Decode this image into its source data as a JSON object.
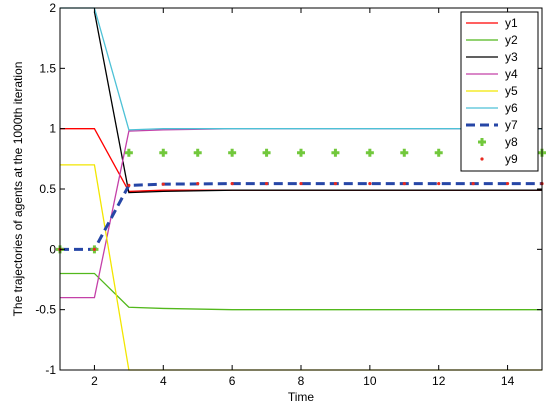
{
  "chart_data": {
    "type": "line",
    "title": "",
    "xlabel": "Time",
    "ylabel": "The trajectories of agents at the 1000th iteration",
    "xlim": [
      1,
      15
    ],
    "ylim": [
      -1,
      2
    ],
    "xticks": [
      2,
      4,
      6,
      8,
      10,
      12,
      14
    ],
    "yticks": [
      -1,
      -0.5,
      0,
      0.5,
      1,
      1.5,
      2
    ],
    "xtick_labels": [
      "2",
      "4",
      "6",
      "8",
      "10",
      "12",
      "14"
    ],
    "ytick_labels": [
      "-1",
      "-0.5",
      "0",
      "0.5",
      "1",
      "1.5",
      "2"
    ],
    "grid": false,
    "legend_position": "top-right",
    "series": [
      {
        "name": "y1",
        "color": "#ff0000",
        "style": "solid",
        "x": [
          1,
          2,
          3,
          4,
          6,
          8,
          10,
          12,
          14,
          15
        ],
        "y": [
          1.0,
          1.0,
          0.48,
          0.49,
          0.49,
          0.49,
          0.49,
          0.49,
          0.49,
          0.49
        ]
      },
      {
        "name": "y2",
        "color": "#52b81c",
        "style": "solid",
        "x": [
          1,
          2,
          3,
          4,
          6,
          8,
          10,
          12,
          14,
          15
        ],
        "y": [
          -0.2,
          -0.2,
          -0.48,
          -0.49,
          -0.5,
          -0.5,
          -0.5,
          -0.5,
          -0.5,
          -0.5
        ]
      },
      {
        "name": "y3",
        "color": "#000000",
        "style": "solid",
        "x": [
          2,
          3,
          4,
          6,
          8,
          10,
          12,
          14,
          15
        ],
        "y": [
          1.97,
          0.47,
          0.48,
          0.49,
          0.49,
          0.49,
          0.49,
          0.49,
          0.49
        ]
      },
      {
        "name": "y4",
        "color": "#c440a8",
        "style": "solid",
        "x": [
          1,
          2,
          3,
          4,
          6,
          8,
          10,
          12,
          14,
          15
        ],
        "y": [
          -0.4,
          -0.4,
          0.98,
          0.99,
          1.0,
          1.0,
          1.0,
          1.0,
          1.0,
          1.0
        ]
      },
      {
        "name": "y5",
        "color": "#f2e600",
        "style": "solid",
        "x": [
          1,
          2,
          3,
          4,
          6,
          8,
          10,
          12,
          14,
          15
        ],
        "y": [
          0.7,
          0.7,
          -1.0,
          -1.0,
          -1.0,
          -1.0,
          -1.0,
          -1.0,
          -1.0,
          -1.0
        ]
      },
      {
        "name": "y6",
        "color": "#4dc1d6",
        "style": "solid",
        "x": [
          1,
          2,
          3,
          4,
          6,
          8,
          10,
          12,
          14,
          15
        ],
        "y": [
          2.0,
          2.0,
          0.99,
          1.0,
          1.0,
          1.0,
          1.0,
          1.0,
          1.0,
          1.0
        ]
      },
      {
        "name": "y7",
        "color": "#2646a6",
        "style": "dashed",
        "x": [
          1,
          2,
          3,
          4,
          6,
          8,
          10,
          12,
          14,
          15
        ],
        "y": [
          0.0,
          0.0,
          0.53,
          0.54,
          0.545,
          0.545,
          0.545,
          0.545,
          0.545,
          0.545
        ]
      },
      {
        "name": "y8",
        "color": "#72c83c",
        "style": "plus-marker",
        "x": [
          1,
          2,
          3,
          4,
          5,
          6,
          7,
          8,
          9,
          10,
          11,
          12,
          13,
          14,
          15
        ],
        "y": [
          0,
          0,
          0.8,
          0.8,
          0.8,
          0.8,
          0.8,
          0.8,
          0.8,
          0.8,
          0.8,
          0.8,
          0.8,
          0.8,
          0.8
        ]
      },
      {
        "name": "y9",
        "color": "#e8291f",
        "style": "dot-marker",
        "x": [
          1,
          2,
          3,
          4,
          5,
          6,
          7,
          8,
          9,
          10,
          11,
          12,
          13,
          14,
          15
        ],
        "y": [
          0,
          0,
          0.53,
          0.54,
          0.545,
          0.545,
          0.545,
          0.545,
          0.545,
          0.545,
          0.545,
          0.545,
          0.545,
          0.545,
          0.545
        ]
      }
    ]
  }
}
